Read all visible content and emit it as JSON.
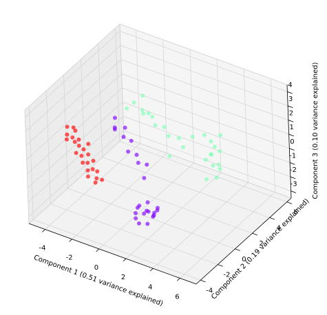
{
  "chart_data": {
    "type": "scatter3d",
    "xlabel": "Component 1 (0.51 variance explained)",
    "ylabel": "Component 2 (0.19 variance explained)",
    "zlabel": "Component 3 (0.10 variance explained)",
    "xlim": [
      -5.2,
      7.2
    ],
    "ylim": [
      -4.5,
      6.5
    ],
    "zlim": [
      -3.5,
      4.5
    ],
    "xticks": [
      -4,
      -2,
      0,
      2,
      4,
      6
    ],
    "yticks": [
      -4,
      -2,
      0,
      2,
      4,
      6
    ],
    "zticks": [
      -3,
      -2,
      -1,
      0,
      1,
      2,
      3,
      4
    ],
    "grid": true,
    "series": [
      {
        "color": "#ff0000",
        "x": [
          -3.6,
          -3.4,
          -3.5,
          -3.2,
          -3.3,
          -3.0,
          -3.1,
          -2.9,
          -2.8,
          -2.7,
          -2.6,
          -2.5,
          -2.4,
          -2.3,
          -2.2,
          -2.1,
          -2.0,
          -1.9,
          -1.8,
          -1.6,
          -1.5,
          -1.4,
          -3.4,
          -2.6
        ],
        "y": [
          -2.2,
          -1.8,
          -2.4,
          -1.9,
          -2.1,
          -2.3,
          -1.7,
          -2.0,
          -2.5,
          -1.8,
          -2.2,
          -1.6,
          -2.4,
          -2.0,
          -1.5,
          -2.3,
          -1.9,
          -2.6,
          -1.7,
          -2.1,
          -2.4,
          -1.8,
          -2.6,
          -1.4
        ],
        "z": [
          2.6,
          2.4,
          2.2,
          2.3,
          1.9,
          1.8,
          1.6,
          1.4,
          1.2,
          1.1,
          0.9,
          0.7,
          0.6,
          0.4,
          0.3,
          0.1,
          0.0,
          -0.1,
          -0.2,
          -0.4,
          -0.5,
          -0.6,
          2.0,
          1.3
        ]
      },
      {
        "color": "#8000ff",
        "x": [
          2.0,
          1.6,
          2.4,
          1.8,
          2.2,
          2.6,
          1.4,
          2.1,
          2.8,
          1.7,
          2.3,
          1.9,
          2.5,
          1.3,
          2.0,
          -1.6,
          -1.3,
          -1.0,
          -0.8,
          -0.5,
          -0.3,
          0.0,
          0.3,
          0.6,
          0.9,
          -1.1
        ],
        "y": [
          -2.0,
          -2.4,
          -1.8,
          -1.5,
          -2.6,
          -2.2,
          -1.9,
          -1.3,
          -2.0,
          -2.8,
          -2.4,
          -1.7,
          -1.5,
          -2.2,
          -2.9,
          0.2,
          -0.3,
          0.4,
          -0.1,
          0.3,
          -0.4,
          0.1,
          -0.2,
          0.3,
          -0.5,
          -0.6
        ],
        "z": [
          -1.5,
          -1.2,
          -1.8,
          -1.9,
          -1.3,
          -1.6,
          -1.4,
          -2.0,
          -1.2,
          -1.7,
          -2.1,
          -1.1,
          -1.4,
          -1.8,
          -1.9,
          2.6,
          2.3,
          2.0,
          1.7,
          1.3,
          1.0,
          0.6,
          0.3,
          0.0,
          -0.4,
          2.4
        ]
      },
      {
        "color": "#80ffb4",
        "x": [
          3.0,
          2.8,
          3.3,
          3.1,
          2.6,
          3.5,
          2.9,
          3.2,
          3.6,
          2.7,
          3.4,
          3.0,
          2.5,
          -2.0,
          -1.6,
          -2.3,
          -1.2,
          -0.8,
          -0.4,
          0.0,
          0.5,
          1.0,
          1.5,
          -1.8,
          -0.6,
          0.8,
          1.9
        ],
        "y": [
          4.0,
          4.3,
          3.7,
          4.6,
          3.9,
          4.2,
          3.5,
          4.8,
          4.0,
          4.4,
          3.8,
          4.5,
          4.1,
          3.0,
          3.4,
          2.6,
          2.8,
          3.2,
          2.9,
          3.3,
          3.0,
          3.4,
          3.1,
          3.6,
          2.5,
          2.6,
          3.6
        ],
        "z": [
          -0.5,
          0.2,
          -1.0,
          -1.5,
          0.8,
          -0.2,
          -2.0,
          0.5,
          -1.3,
          -0.8,
          0.3,
          -2.4,
          -1.1,
          2.0,
          2.4,
          1.7,
          1.6,
          1.3,
          1.0,
          0.8,
          0.5,
          0.3,
          0.0,
          1.2,
          2.0,
          -0.6,
          0.6
        ]
      }
    ]
  }
}
